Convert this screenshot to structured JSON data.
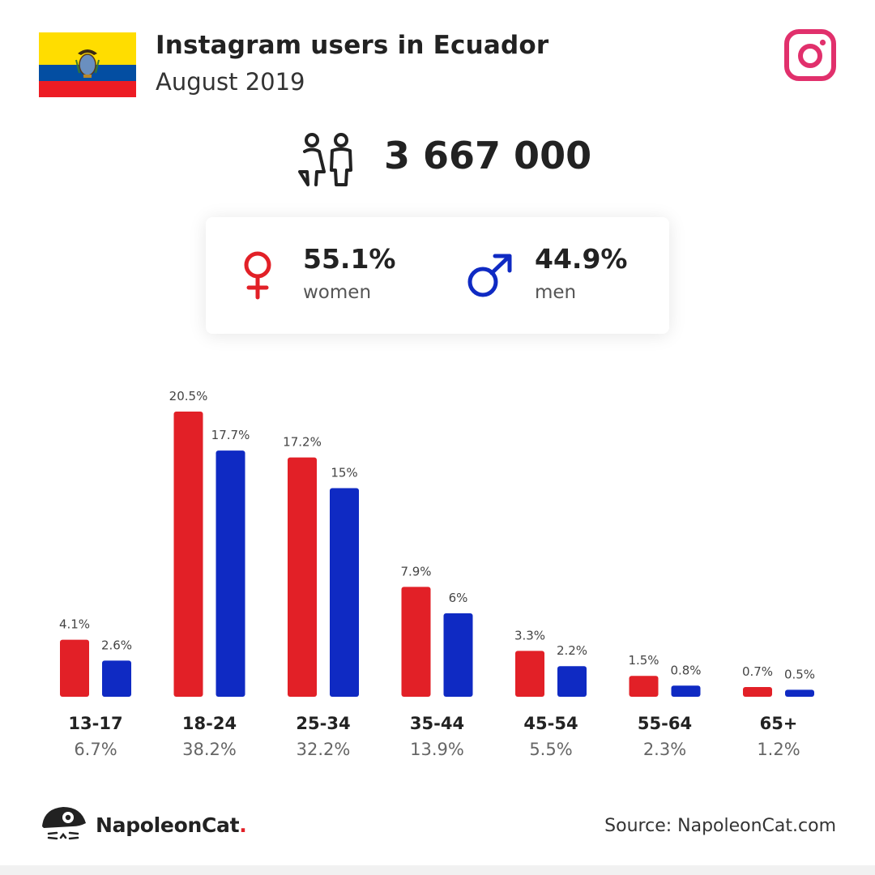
{
  "header": {
    "title": "Instagram users in Ecuador",
    "subtitle": "August 2019",
    "flag_icon": "ecuador-flag",
    "platform_icon": "instagram-icon"
  },
  "summary": {
    "users_icon": "users-icon",
    "total_users": "3 667 000"
  },
  "gender": {
    "women": {
      "icon": "female-icon",
      "percent": "55.1%",
      "label": "women"
    },
    "men": {
      "icon": "male-icon",
      "percent": "44.9%",
      "label": "men"
    }
  },
  "chart_data": {
    "type": "bar",
    "categories": [
      "13-17",
      "18-24",
      "25-34",
      "35-44",
      "45-54",
      "55-64",
      "65+"
    ],
    "category_totals": [
      "6.7%",
      "38.2%",
      "32.2%",
      "13.9%",
      "5.5%",
      "2.3%",
      "1.2%"
    ],
    "series": [
      {
        "values": [
          4.1,
          20.5,
          17.2,
          7.9,
          3.3,
          1.5,
          0.7
        ],
        "labels": [
          "4.1%",
          "20.5%",
          "17.2%",
          "7.9%",
          "3.3%",
          "1.5%",
          "0.7%"
        ],
        "color": "#e22027"
      },
      {
        "values": [
          2.6,
          17.7,
          15,
          6,
          2.2,
          0.8,
          0.5
        ],
        "labels": [
          "2.6%",
          "17.7%",
          "15%",
          "6%",
          "2.2%",
          "0.8%",
          "0.5%"
        ],
        "color": "#0f2ac3"
      }
    ],
    "ylim": [
      0,
      20.5
    ]
  },
  "footer": {
    "logo_icon": "napoleoncat-logo",
    "brand": "NapoleonCat",
    "brand_dot": ".",
    "source": "Source: NapoleonCat.com"
  },
  "colors": {
    "women": "#e22027",
    "men": "#0f2ac3",
    "instagram": "#e1306c"
  }
}
